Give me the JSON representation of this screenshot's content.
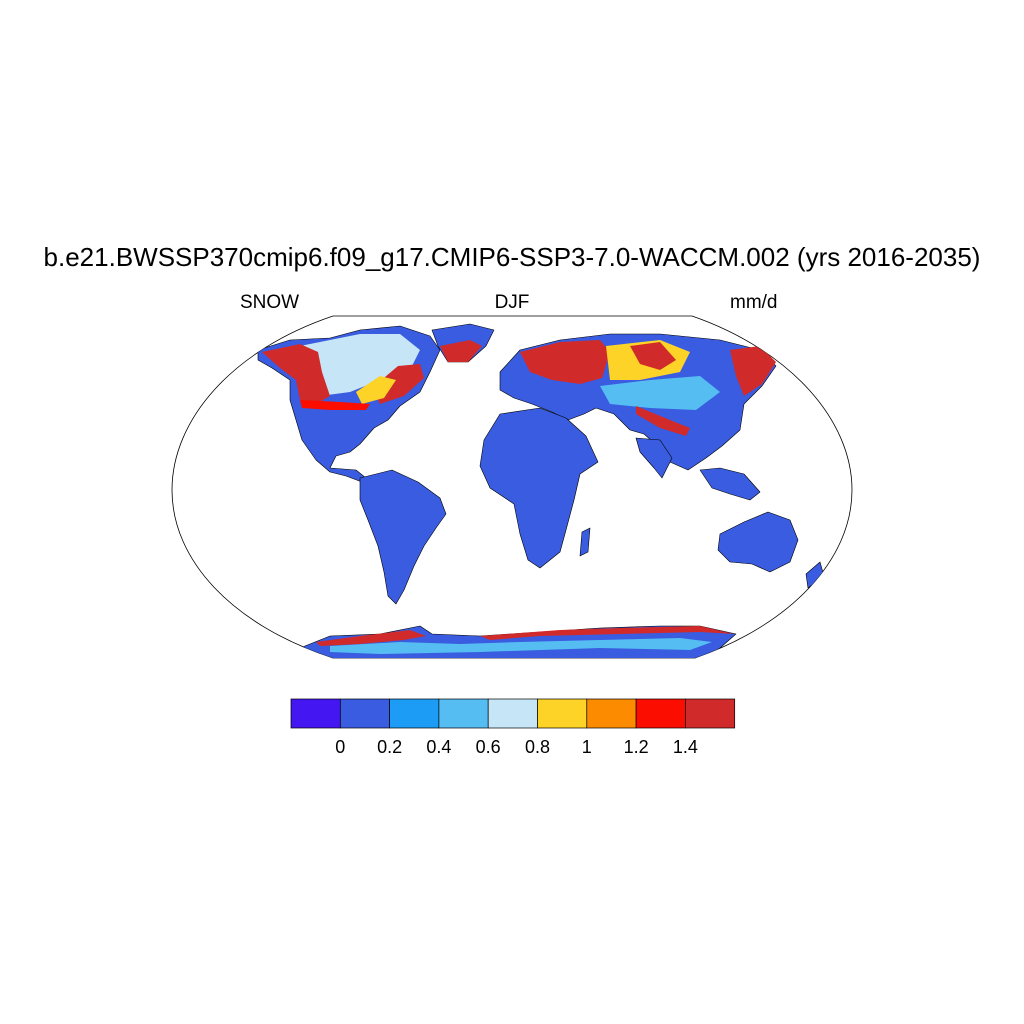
{
  "title": "b.e21.BWSSP370cmip6.f09_g17.CMIP6-SSP3-7.0-WACCM.002 (yrs 2016-2035)",
  "left_string": "SNOW",
  "center_string": "DJF",
  "right_string": "mm/d",
  "colorbar": {
    "colors": [
      "#4417f2",
      "#3a5ce0",
      "#1c9cf5",
      "#55bdf2",
      "#c6e6f7",
      "#fdd327",
      "#fd8b00",
      "#fb0d00",
      "#d12a2a"
    ],
    "tick_labels": [
      "0",
      "0.2",
      "0.4",
      "0.6",
      "0.8",
      "1",
      "1.2",
      "1.4"
    ]
  },
  "map_colors": {
    "ocean": "#ffffff",
    "low_land": "#3a5ce0",
    "coast": "#000000"
  }
}
